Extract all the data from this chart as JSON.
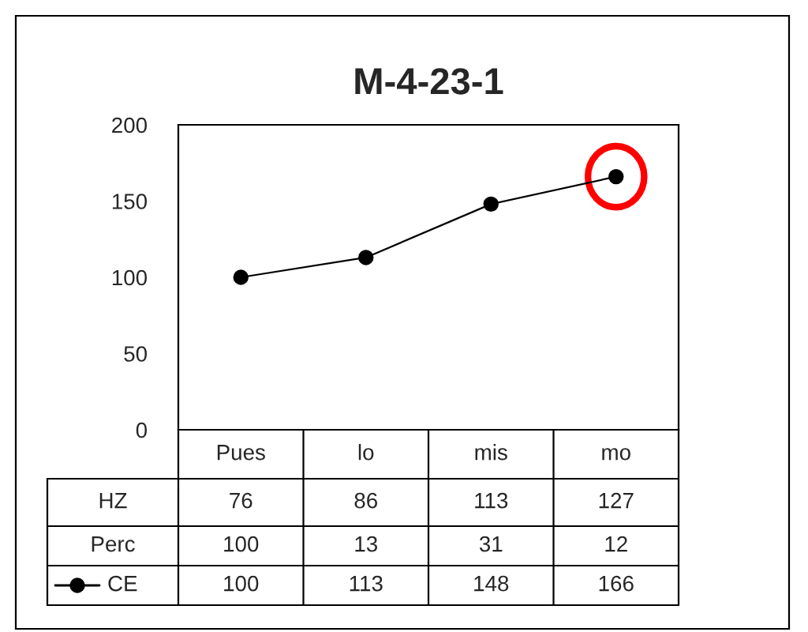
{
  "chart_data": {
    "type": "line",
    "title": "M-4-23-1",
    "categories": [
      "Pues",
      "lo",
      "mis",
      "mo"
    ],
    "series": [
      {
        "name": "HZ",
        "type": "other",
        "values": [
          null,
          null,
          null,
          null
        ],
        "value_labels": [
          "76",
          "86",
          "113",
          "127"
        ]
      },
      {
        "name": "Perc",
        "type": "other",
        "values": [
          null,
          null,
          null,
          null
        ],
        "value_labels": [
          "100",
          "13",
          "31",
          "12"
        ]
      },
      {
        "name": "CE",
        "color": "#000000",
        "values": [
          100,
          113,
          148,
          166
        ]
      }
    ],
    "ylim": [
      0,
      200
    ],
    "yticks": [
      0,
      50,
      100,
      150,
      200
    ],
    "marker": "circle",
    "line_style": "solid",
    "grid": false,
    "data_labels": true
  }
}
